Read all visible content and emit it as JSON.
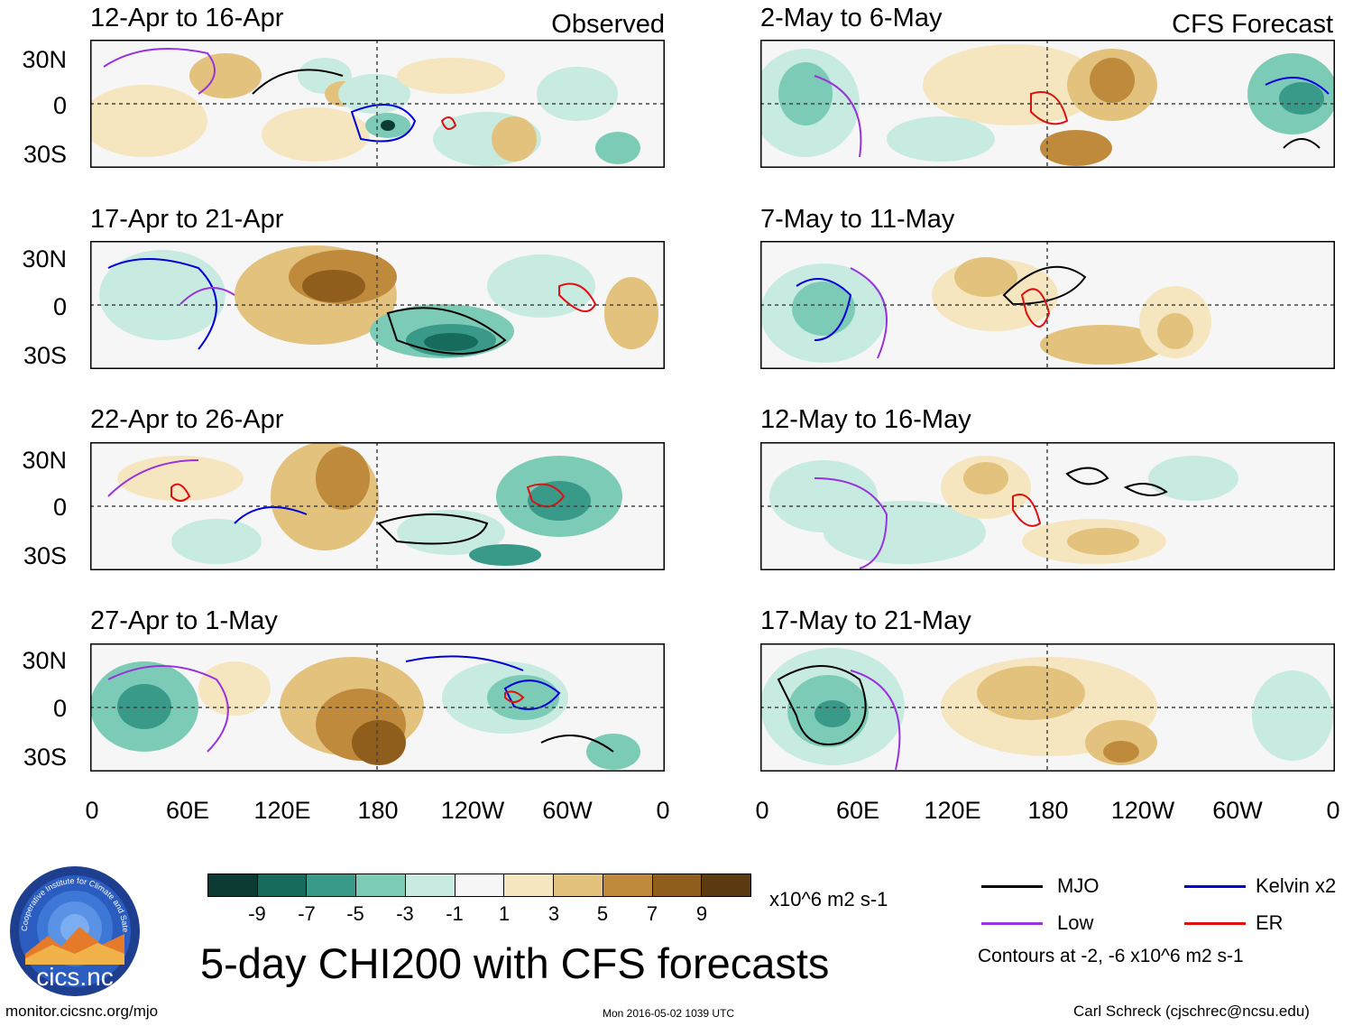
{
  "header": {
    "observed_label": "Observed",
    "forecast_label": "CFS Forecast"
  },
  "lat_labels": [
    "30N",
    "0",
    "30S"
  ],
  "lon_labels": [
    "0",
    "60E",
    "120E",
    "180",
    "120W",
    "60W",
    "0"
  ],
  "observed_panels": [
    {
      "title": "12-Apr to 16-Apr"
    },
    {
      "title": "17-Apr to 21-Apr"
    },
    {
      "title": "22-Apr to 26-Apr"
    },
    {
      "title": "27-Apr to 1-May"
    }
  ],
  "forecast_panels": [
    {
      "title": "2-May to 6-May"
    },
    {
      "title": "7-May to 11-May"
    },
    {
      "title": "12-May to 16-May"
    },
    {
      "title": "17-May to 21-May"
    }
  ],
  "colorbar": {
    "colors": [
      "#0b3b33",
      "#176b5c",
      "#3a9a89",
      "#7ccbb6",
      "#c7ebe0",
      "#f6f6f6",
      "#f6e6bf",
      "#e2c27c",
      "#c08a3c",
      "#8f5d1c",
      "#5c3a12"
    ],
    "tick_labels": [
      "-9",
      "-7",
      "-5",
      "-3",
      "-1",
      "1",
      "3",
      "5",
      "7",
      "9"
    ],
    "units": "x10^6 m2 s-1"
  },
  "legend": {
    "items": [
      {
        "label": "MJO",
        "color": "#000000"
      },
      {
        "label": "Kelvin x2",
        "color": "#0000dd"
      },
      {
        "label": "Low",
        "color": "#9933dd"
      },
      {
        "label": "ER",
        "color": "#dd1111"
      }
    ],
    "contours_note": "Contours at -2, -6 x10^6 m2 s-1"
  },
  "title": "5-day CHI200 with CFS forecasts",
  "logo": {
    "text": "cics.nc",
    "ring_text": "Cooperative Institute for Climate and Satellites"
  },
  "footer": {
    "url": "monitor.cicsnc.org/mjo",
    "timestamp": "Mon 2016-05-02 1039 UTC",
    "author": "Carl Schreck (cjschrec@ncsu.edu)"
  }
}
